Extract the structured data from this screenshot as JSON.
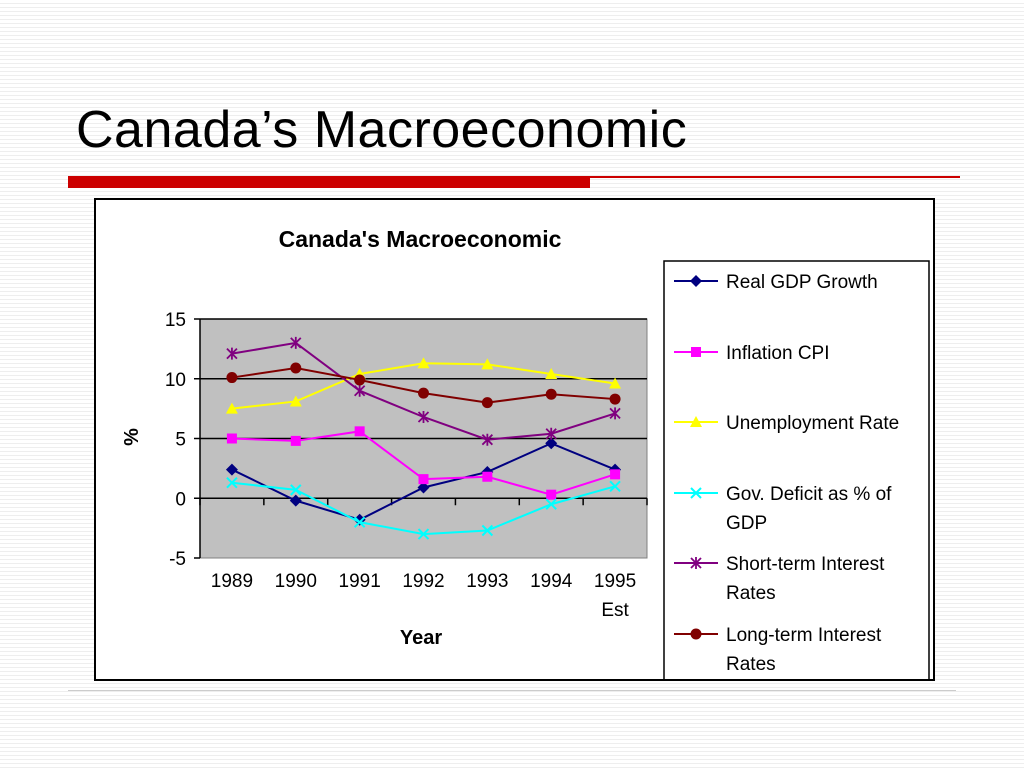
{
  "slide": {
    "title": "Canada’s Macroeconomic",
    "accent_color": "#cc0000"
  },
  "chart_data": {
    "type": "line",
    "title": "Canada's Macroeconomic",
    "xlabel": "Year",
    "ylabel": "%",
    "categories": [
      "1989",
      "1990",
      "1991",
      "1992",
      "1993",
      "1994",
      "1995 Est"
    ],
    "category_lines": [
      [
        "1989"
      ],
      [
        "1990"
      ],
      [
        "1991"
      ],
      [
        "1992"
      ],
      [
        "1993"
      ],
      [
        "1994"
      ],
      [
        "1995",
        "Est"
      ]
    ],
    "ylim": [
      -5,
      15
    ],
    "yticks": [
      -5,
      0,
      5,
      10,
      15
    ],
    "grid": true,
    "plot_background": "#c0c0c0",
    "legend_position": "right",
    "series": [
      {
        "name": "Real GDP Growth",
        "values": [
          2.4,
          -0.2,
          -1.8,
          0.9,
          2.2,
          4.6,
          2.4
        ],
        "color": "#000080",
        "marker": "diamond",
        "legend_lines": [
          "Real GDP Growth"
        ]
      },
      {
        "name": "Inflation CPI",
        "values": [
          5.0,
          4.8,
          5.6,
          1.6,
          1.8,
          0.3,
          2.0
        ],
        "color": "#ff00ff",
        "marker": "square",
        "legend_lines": [
          "Inflation CPI"
        ]
      },
      {
        "name": "Unemployment Rate",
        "values": [
          7.5,
          8.1,
          10.4,
          11.3,
          11.2,
          10.4,
          9.6
        ],
        "color": "#ffff00",
        "marker": "triangle",
        "legend_lines": [
          "Unemployment Rate"
        ]
      },
      {
        "name": "Gov. Deficit as % of GDP",
        "values": [
          1.3,
          0.7,
          -2.0,
          -3.0,
          -2.7,
          -0.5,
          1.0
        ],
        "color": "#00ffff",
        "marker": "x",
        "legend_lines": [
          "Gov. Deficit as % of",
          "GDP"
        ]
      },
      {
        "name": "Short-term Interest Rates",
        "values": [
          12.1,
          13.0,
          9.0,
          6.8,
          4.9,
          5.4,
          7.1
        ],
        "color": "#800080",
        "marker": "star",
        "legend_lines": [
          "Short-term Interest",
          "Rates"
        ]
      },
      {
        "name": "Long-term Interest Rates",
        "values": [
          10.1,
          10.9,
          9.9,
          8.8,
          8.0,
          8.7,
          8.3
        ],
        "color": "#800000",
        "marker": "circle",
        "legend_lines": [
          "Long-term Interest",
          "Rates"
        ]
      }
    ]
  }
}
